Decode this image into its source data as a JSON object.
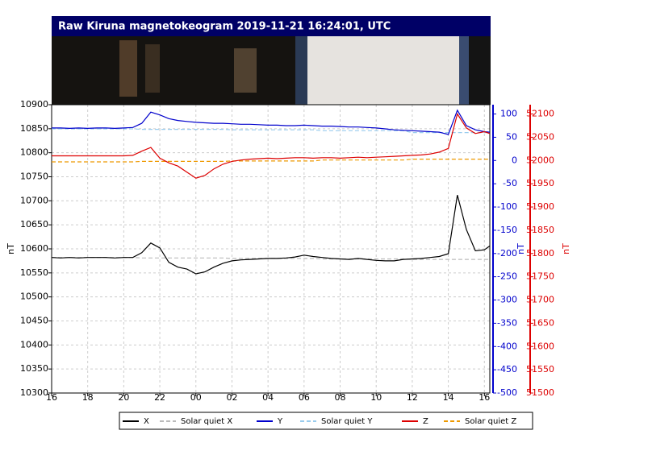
{
  "chart_data": {
    "type": "line",
    "title": "Raw Kiruna magnetokeogram 2019-11-21 16:24:01, UTC",
    "x": [
      16,
      16.5,
      17,
      17.5,
      18,
      18.5,
      19,
      19.5,
      20,
      20.5,
      21,
      21.5,
      22,
      22.5,
      23,
      23.5,
      24,
      24.5,
      25,
      25.5,
      26,
      26.5,
      27,
      27.5,
      28,
      28.5,
      29,
      29.5,
      30,
      30.5,
      31,
      31.5,
      32,
      32.5,
      33,
      33.5,
      34,
      34.5,
      35,
      35.5,
      36,
      36.5,
      37,
      37.5,
      38,
      38.5,
      39,
      39.5,
      40,
      40.3
    ],
    "xlim": [
      16,
      40.3
    ],
    "xticks": [
      16,
      18,
      20,
      22,
      {
        "value": 24,
        "label": "00"
      },
      {
        "value": 26,
        "label": "02"
      },
      {
        "value": 28,
        "label": "04"
      },
      {
        "value": 30,
        "label": "06"
      },
      {
        "value": 32,
        "label": "08"
      },
      {
        "value": 34,
        "label": "10"
      },
      {
        "value": 36,
        "label": "12"
      },
      {
        "value": 38,
        "label": "14"
      },
      {
        "value": 40,
        "label": "16"
      }
    ],
    "y_label": "nT",
    "y2_label": "nT",
    "y3_label": "nT",
    "ylim": [
      10300,
      10900
    ],
    "yticks": [
      10300,
      10350,
      10400,
      10450,
      10500,
      10550,
      10600,
      10650,
      10700,
      10750,
      10800,
      10850,
      10900
    ],
    "y2lim": [
      -500,
      120
    ],
    "y2ticks": [
      -500,
      -450,
      -400,
      -350,
      -300,
      -250,
      -200,
      -150,
      -100,
      -50,
      0,
      50,
      100
    ],
    "y3lim": [
      51500,
      52120
    ],
    "y3ticks": [
      51500,
      51550,
      51600,
      51650,
      51700,
      51750,
      51800,
      51850,
      51900,
      51950,
      52000,
      52050,
      52100
    ],
    "grid": true,
    "series": [
      {
        "name": "X",
        "color": "#000000",
        "axis": "y",
        "dashed": false,
        "values": [
          10582,
          10581,
          10582,
          10581,
          10582,
          10582,
          10582,
          10581,
          10582,
          10582,
          10592,
          10612,
          10602,
          10572,
          10562,
          10558,
          10548,
          10552,
          10562,
          10570,
          10575,
          10577,
          10578,
          10579,
          10580,
          10580,
          10581,
          10583,
          10587,
          10584,
          10582,
          10580,
          10579,
          10578,
          10580,
          10578,
          10576,
          10575,
          10575,
          10578,
          10579,
          10580,
          10582,
          10584,
          10590,
          10712,
          10640,
          10596,
          10598,
          10606
        ]
      },
      {
        "name": "Solar quiet X",
        "color": "#bbbbbb",
        "axis": "y",
        "dashed": true,
        "values": [
          10582,
          10582,
          10582,
          10582,
          10582,
          10582,
          10582,
          10582,
          10582,
          10582,
          10581,
          10581,
          10581,
          10581,
          10581,
          10581,
          10581,
          10581,
          10581,
          10581,
          10580,
          10580,
          10580,
          10580,
          10580,
          10580,
          10580,
          10580,
          10580,
          10580,
          10579,
          10579,
          10579,
          10579,
          10579,
          10579,
          10579,
          10579,
          10579,
          10579,
          10578,
          10578,
          10578,
          10578,
          10578,
          10578,
          10578,
          10578,
          10578,
          10578
        ]
      },
      {
        "name": "Y",
        "color": "#0000cc",
        "axis": "y2",
        "dashed": false,
        "values": [
          70,
          70,
          69,
          70,
          69,
          70,
          70,
          69,
          70,
          71,
          80,
          104,
          98,
          90,
          86,
          84,
          82,
          81,
          80,
          80,
          79,
          78,
          78,
          77,
          76,
          76,
          75,
          75,
          76,
          75,
          74,
          74,
          73,
          72,
          72,
          71,
          70,
          68,
          66,
          65,
          64,
          63,
          62,
          61,
          56,
          108,
          75,
          66,
          62,
          61
        ]
      },
      {
        "name": "Solar quiet Y",
        "color": "#99ccee",
        "axis": "y2",
        "dashed": true,
        "values": [
          68,
          68,
          68,
          68,
          68,
          68,
          68,
          68,
          68,
          68,
          67,
          67,
          67,
          67,
          67,
          67,
          67,
          67,
          67,
          67,
          66,
          66,
          66,
          66,
          66,
          66,
          66,
          66,
          66,
          66,
          64,
          64,
          64,
          64,
          64,
          64,
          64,
          64,
          64,
          64,
          60,
          60,
          60,
          60,
          60,
          60,
          60,
          60,
          60,
          60
        ]
      },
      {
        "name": "Z",
        "color": "#dd0000",
        "axis": "y3",
        "dashed": false,
        "values": [
          52010,
          52010,
          52010,
          52010,
          52010,
          52010,
          52010,
          52010,
          52010,
          52011,
          52020,
          52028,
          52005,
          51995,
          51988,
          51975,
          51962,
          51968,
          51982,
          51992,
          51998,
          52001,
          52003,
          52004,
          52005,
          52004,
          52005,
          52006,
          52006,
          52005,
          52006,
          52006,
          52005,
          52006,
          52007,
          52006,
          52007,
          52008,
          52009,
          52010,
          52011,
          52012,
          52014,
          52018,
          52026,
          52100,
          52070,
          52058,
          52062,
          52058
        ]
      },
      {
        "name": "Solar quiet Z",
        "color": "#ee9900",
        "axis": "y3",
        "dashed": true,
        "values": [
          51997,
          51997,
          51997,
          51997,
          51997,
          51997,
          51997,
          51997,
          51997,
          51997,
          51998,
          51998,
          51998,
          51998,
          51998,
          51998,
          51998,
          51998,
          51998,
          51998,
          51999,
          51999,
          51999,
          51999,
          51999,
          51999,
          51999,
          51999,
          51999,
          51999,
          52001,
          52001,
          52001,
          52001,
          52001,
          52001,
          52001,
          52001,
          52001,
          52001,
          52003,
          52003,
          52003,
          52003,
          52003,
          52003,
          52003,
          52003,
          52003,
          52003
        ]
      }
    ]
  }
}
